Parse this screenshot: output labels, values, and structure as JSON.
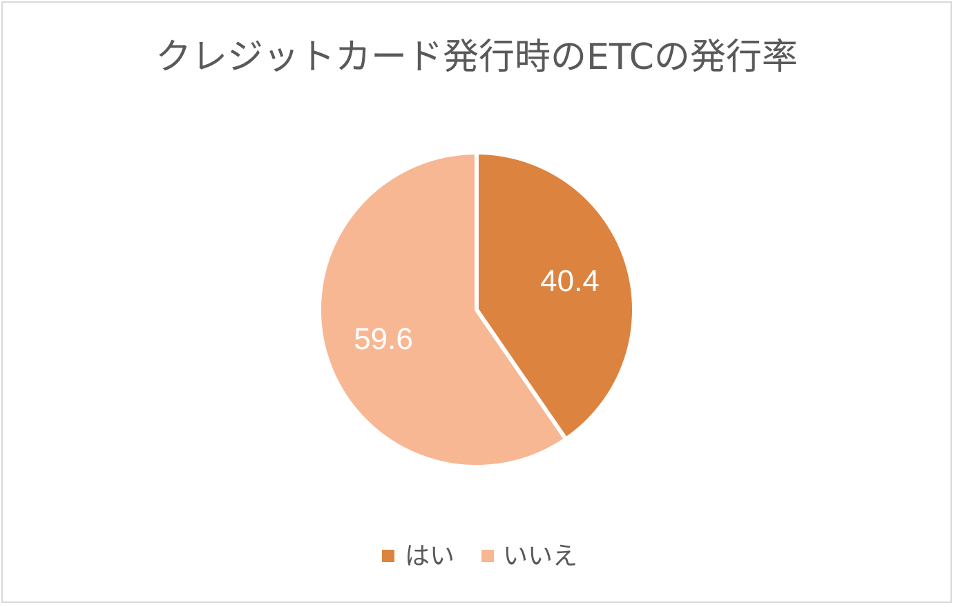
{
  "chart_data": {
    "type": "pie",
    "title": "クレジットカード発行時のETCの発行率",
    "categories": [
      "はい",
      "いいえ"
    ],
    "values": [
      40.4,
      59.6
    ],
    "colors": [
      "#dc833f",
      "#f8b793"
    ],
    "legend": {
      "position": "bottom",
      "entries": [
        "はい",
        "いいえ"
      ]
    }
  }
}
